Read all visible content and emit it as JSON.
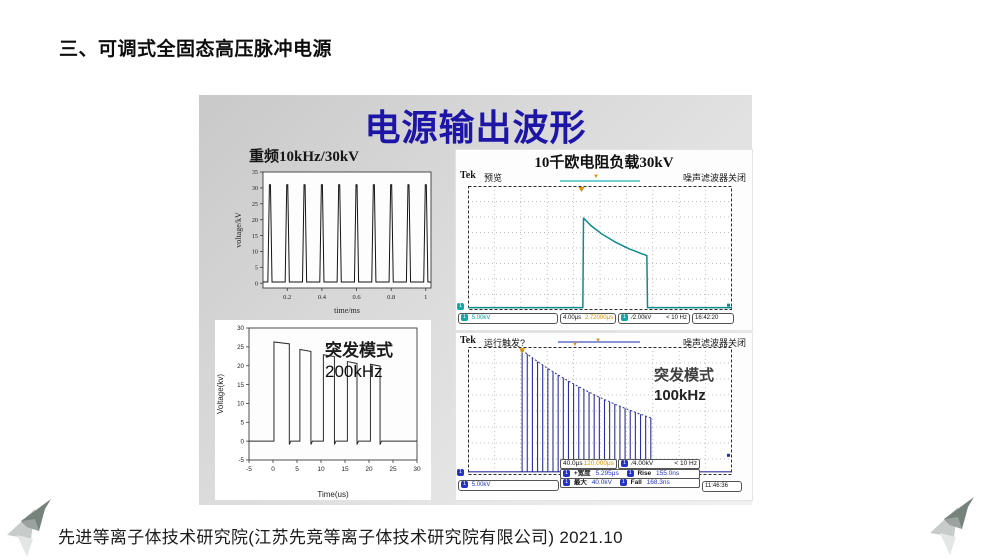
{
  "slide": {
    "heading": "三、可调式全固态高压脉冲电源",
    "panel_title": "电源输出波形",
    "footer": "先进等离子体技术研究院(江苏先竞等离子体技术研究院有限公司)  2021.10"
  },
  "colors": {
    "accent_blue": "#1d14a8",
    "teal_trace": "#0d8b8b",
    "navy_trace": "#2a2f9e",
    "orange": "#dd8f00",
    "teal_badge": "#12a7a7",
    "navy_badge": "#2433c4"
  },
  "chart_data": [
    {
      "id": "pulse_train",
      "type": "line",
      "title": "重频10kHz/30kV",
      "xlabel": "time/ms",
      "ylabel": "voltage/kV",
      "xlim": [
        0.06,
        1.03
      ],
      "ylim": [
        -1.5,
        35
      ],
      "xticks": [
        0.2,
        0.4,
        0.6,
        0.8,
        1.0
      ],
      "yticks": [
        0,
        5,
        10,
        15,
        20,
        25,
        30,
        35
      ],
      "pulse_x_ms": [
        0.1,
        0.2,
        0.3,
        0.4,
        0.5,
        0.6,
        0.7,
        0.8,
        0.9,
        1.0
      ],
      "pulse_amplitude_kV": 31,
      "pulse_width_ms": 0.012,
      "baseline_kV": 0.4
    },
    {
      "id": "burst_200khz",
      "type": "line",
      "annotation": {
        "cn": "突发模式",
        "en": "200kHz"
      },
      "xlabel": "Time(us)",
      "ylabel": "Voltage(kv)",
      "xlim": [
        -5,
        30
      ],
      "ylim": [
        -5,
        30
      ],
      "xticks": [
        -5,
        0,
        5,
        10,
        15,
        20,
        25,
        30
      ],
      "yticks": [
        -5,
        0,
        5,
        10,
        15,
        20,
        25,
        30
      ],
      "bursts_start_width_amp": [
        [
          0.2,
          3.2,
          26.3
        ],
        [
          5.6,
          2.3,
          24.3
        ],
        [
          10.5,
          2.3,
          22.9
        ],
        [
          15.5,
          2.0,
          21.1
        ],
        [
          20.3,
          2.0,
          20.4
        ]
      ],
      "undershoot_kV": -0.9
    },
    {
      "id": "scope_single_pulse",
      "type": "scope-line",
      "divisions": [
        10,
        8
      ],
      "volts_per_div_kV": 5,
      "time_per_div_us": 4,
      "baseline_div_from_top": 7.85,
      "trigger_marker_div": 4.3,
      "points_t_us_v_kV": [
        [
          0,
          0
        ],
        [
          17.4,
          0
        ],
        [
          17.5,
          28.9
        ],
        [
          18.6,
          26.5
        ],
        [
          20.2,
          23.9
        ],
        [
          22.2,
          21.3
        ],
        [
          24.4,
          19.0
        ],
        [
          26.2,
          17.5
        ],
        [
          27.1,
          16.8
        ],
        [
          27.2,
          0
        ],
        [
          40,
          0
        ]
      ]
    },
    {
      "id": "scope_burst_100khz",
      "type": "scope-burst",
      "divisions": [
        10,
        8
      ],
      "volts_per_div_kV": 5,
      "time_per_div_us": 40,
      "baseline_div_from_top": 7.8,
      "burst": {
        "start_us": 82,
        "period_us": 7.8,
        "count": 26,
        "first_amp_kV": 38,
        "amp_ratio": 0.968
      }
    }
  ],
  "scope1": {
    "caption": "10千欧电阻负载30kV",
    "brand": "Tek",
    "mode": "预览",
    "noise_status": "噪声滤波器关闭",
    "channel": "1",
    "ch_scale": "5.00kV",
    "timebase": "4.00μs",
    "delay": "2.72000μs",
    "trig_slope": "∕",
    "trig_scale": "2.00kV",
    "trig_freq": "< 10 Hz",
    "clock": "16:42:20"
  },
  "scope2": {
    "brand": "Tek",
    "mode": "运行",
    "trig_query": "触发?",
    "noise_status": "噪声滤波器关闭",
    "annotation_cn": "突发模式",
    "annotation_en": "100kHz",
    "channel": "1",
    "ch_scale": "5.00kV",
    "timebase": "40.0μs",
    "delay": "120.000μs",
    "trig_slope": "∕",
    "trig_scale": "4.00kV",
    "trig_freq": "< 10 Hz",
    "clock": "11:46:36",
    "measurements": [
      {
        "label": "+宽度",
        "value": "5.295μs"
      },
      {
        "label": "Rise",
        "value": "155.0ns"
      },
      {
        "label": "最大",
        "value": "40.0kV"
      },
      {
        "label": "Fall",
        "value": "168.3ns"
      }
    ]
  }
}
